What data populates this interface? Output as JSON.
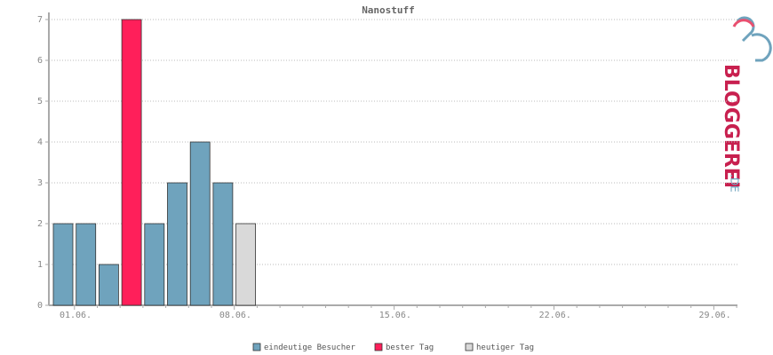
{
  "chart_data": {
    "type": "bar",
    "title": "Nanostuff",
    "categories": [
      "01.06.",
      null,
      null,
      null,
      null,
      null,
      null,
      "08.06.",
      null,
      null,
      null,
      null,
      null,
      null,
      "15.06.",
      null,
      null,
      null,
      null,
      null,
      null,
      "22.06.",
      null,
      null,
      null,
      null,
      null,
      null,
      "29.06.",
      null
    ],
    "series": [
      {
        "name": "eindeutige Besucher",
        "color": "#6fa3bd",
        "values": [
          2,
          2,
          1,
          null,
          2,
          3,
          4,
          3,
          null,
          null,
          null,
          null,
          null,
          null,
          null,
          null,
          null,
          null,
          null,
          null,
          null,
          null,
          null,
          null,
          null,
          null,
          null,
          null,
          null,
          null
        ]
      },
      {
        "name": "bester Tag",
        "color": "#ff1f5a",
        "values": [
          null,
          null,
          null,
          7,
          null,
          null,
          null,
          null,
          null,
          null,
          null,
          null,
          null,
          null,
          null,
          null,
          null,
          null,
          null,
          null,
          null,
          null,
          null,
          null,
          null,
          null,
          null,
          null,
          null,
          null
        ]
      },
      {
        "name": "heutiger Tag",
        "color": "#d9d9d9",
        "values": [
          null,
          null,
          null,
          null,
          null,
          null,
          null,
          null,
          2,
          null,
          null,
          null,
          null,
          null,
          null,
          null,
          null,
          null,
          null,
          null,
          null,
          null,
          null,
          null,
          null,
          null,
          null,
          null,
          null,
          null
        ]
      }
    ],
    "ylim": [
      0,
      7
    ],
    "yticks": [
      0,
      1,
      2,
      3,
      4,
      5,
      6,
      7
    ],
    "grid": true
  },
  "logo": {
    "name": "BLOGGEREI",
    "suffix": ".DE"
  }
}
